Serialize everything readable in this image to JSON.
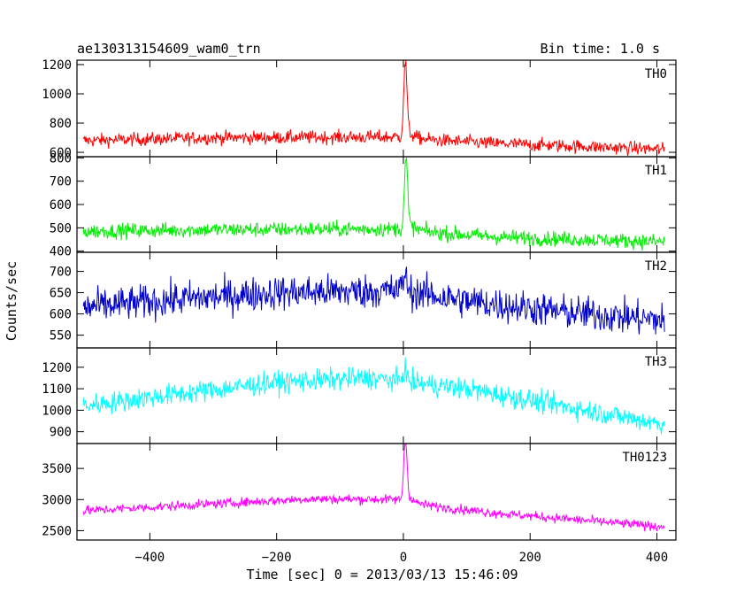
{
  "chart_data": {
    "type": "line",
    "title_left": "ae130313154609_wam0_trn",
    "title_right": "Bin time: 1.0 s",
    "xlabel": "Time [sec] 0 = 2013/03/13 15:46:09",
    "ylabel": "Counts/sec",
    "xlim": [
      -515,
      430
    ],
    "x_ticks": [
      -400,
      -200,
      0,
      200,
      400
    ],
    "x_data_range": [
      -505,
      412
    ],
    "panels": [
      {
        "name": "TH0",
        "color": "#ff0000",
        "ylim": [
          570,
          1230
        ],
        "y_ticks": [
          600,
          800,
          1000,
          1200
        ],
        "baseline": [
          [
            -505,
            680
          ],
          [
            -300,
            700
          ],
          [
            0,
            705
          ],
          [
            20,
            690
          ],
          [
            150,
            660
          ],
          [
            412,
            620
          ]
        ],
        "noise": 45,
        "peak": {
          "x": 3,
          "height": 500,
          "width": 2.5,
          "tail": 60,
          "decay": 12
        }
      },
      {
        "name": "TH1",
        "color": "#00ee00",
        "ylim": [
          395,
          805
        ],
        "y_ticks": [
          400,
          500,
          600,
          700,
          800
        ],
        "baseline": [
          [
            -505,
            485
          ],
          [
            -300,
            492
          ],
          [
            0,
            495
          ],
          [
            20,
            485
          ],
          [
            150,
            460
          ],
          [
            412,
            440
          ]
        ],
        "noise": 32,
        "peak": {
          "x": 4,
          "height": 290,
          "width": 2.5,
          "tail": 40,
          "decay": 12
        }
      },
      {
        "name": "TH2",
        "color": "#0000cc",
        "ylim": [
          520,
          745
        ],
        "y_ticks": [
          550,
          600,
          650,
          700
        ],
        "baseline": [
          [
            -505,
            615
          ],
          [
            -350,
            635
          ],
          [
            -200,
            650
          ],
          [
            0,
            655
          ],
          [
            100,
            630
          ],
          [
            250,
            605
          ],
          [
            412,
            585
          ]
        ],
        "noise": 40,
        "peak": {
          "x": 2,
          "height": 40,
          "width": 3,
          "tail": 0,
          "decay": 10
        }
      },
      {
        "name": "TH3",
        "color": "#00ffff",
        "ylim": [
          845,
          1290
        ],
        "y_ticks": [
          900,
          1000,
          1100,
          1200
        ],
        "baseline": [
          [
            -505,
            1020
          ],
          [
            -400,
            1060
          ],
          [
            -200,
            1130
          ],
          [
            -50,
            1150
          ],
          [
            100,
            1100
          ],
          [
            250,
            1020
          ],
          [
            412,
            935
          ]
        ],
        "noise": 50,
        "peak": {
          "x": 2,
          "height": 60,
          "width": 3,
          "tail": 0,
          "decay": 10
        }
      },
      {
        "name": "TH0123",
        "color": "#ff00ff",
        "ylim": [
          2350,
          3900
        ],
        "y_ticks": [
          2500,
          3000,
          3500
        ],
        "baseline": [
          [
            -505,
            2820
          ],
          [
            -300,
            2930
          ],
          [
            -150,
            3010
          ],
          [
            0,
            3000
          ],
          [
            20,
            2920
          ],
          [
            150,
            2780
          ],
          [
            412,
            2560
          ]
        ],
        "noise": 75,
        "peak": {
          "x": 3,
          "height": 950,
          "width": 2.5,
          "tail": 150,
          "decay": 12
        }
      }
    ]
  }
}
